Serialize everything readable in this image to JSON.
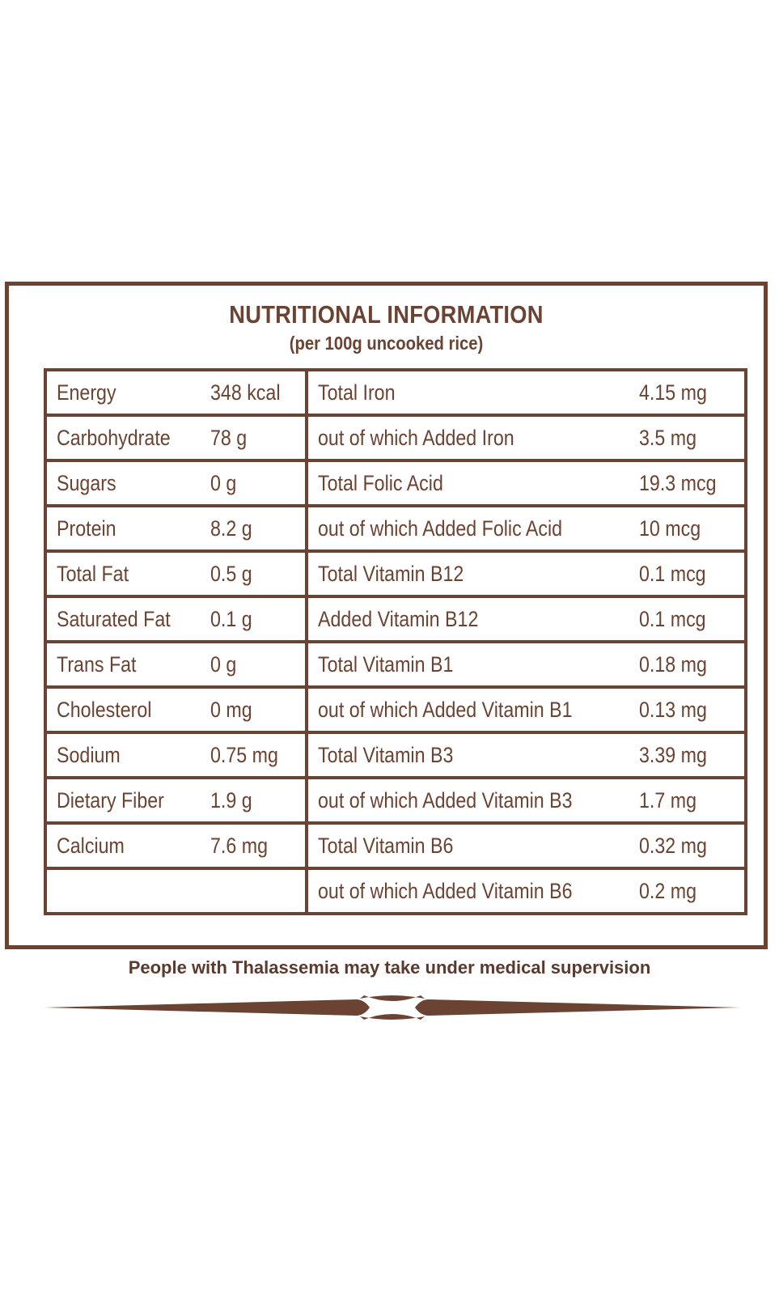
{
  "panel": {
    "title": "NUTRITIONAL INFORMATION",
    "subtitle": "(per 100g uncooked rice)"
  },
  "table": {
    "rows": [
      {
        "left_name": "Energy",
        "left_value": "348 kcal",
        "right_name": "Total Iron",
        "right_value": "4.15 mg"
      },
      {
        "left_name": "Carbohydrate",
        "left_value": "78 g",
        "right_name": "out of which Added Iron",
        "right_value": "3.5 mg"
      },
      {
        "left_name": "Sugars",
        "left_value": "0 g",
        "right_name": "Total Folic Acid",
        "right_value": "19.3 mcg"
      },
      {
        "left_name": "Protein",
        "left_value": "8.2 g",
        "right_name": "out of which Added Folic Acid",
        "right_value": "10 mcg"
      },
      {
        "left_name": "Total Fat",
        "left_value": "0.5 g",
        "right_name": "Total Vitamin B12",
        "right_value": "0.1 mcg"
      },
      {
        "left_name": "Saturated Fat",
        "left_value": "0.1 g",
        "right_name": "Added Vitamin B12",
        "right_value": "0.1 mcg"
      },
      {
        "left_name": "Trans Fat",
        "left_value": "0 g",
        "right_name": "Total Vitamin B1",
        "right_value": "0.18 mg"
      },
      {
        "left_name": "Cholesterol",
        "left_value": "0 mg",
        "right_name": "out of which Added Vitamin B1",
        "right_value": "0.13 mg"
      },
      {
        "left_name": "Sodium",
        "left_value": "0.75 mg",
        "right_name": "Total Vitamin B3",
        "right_value": "3.39 mg"
      },
      {
        "left_name": "Dietary Fiber",
        "left_value": "1.9 g",
        "right_name": "out of which Added Vitamin B3",
        "right_value": "1.7 mg"
      },
      {
        "left_name": "Calcium",
        "left_value": "7.6 mg",
        "right_name": "Total Vitamin B6",
        "right_value": "0.32 mg"
      },
      {
        "left_name": "",
        "left_value": "",
        "right_name": "out of which Added Vitamin B6",
        "right_value": "0.2 mg"
      }
    ]
  },
  "footer": {
    "warning": "People with Thalassemia may take under medical supervision"
  },
  "colors": {
    "brand_brown": "#6b4333",
    "text_brown": "#5a3a2e",
    "background": "#ffffff"
  }
}
